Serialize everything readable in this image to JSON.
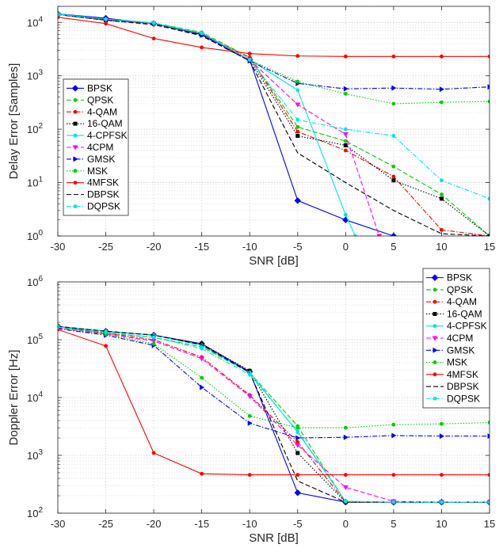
{
  "chart_data": [
    {
      "type": "line",
      "xlabel": "SNR [dB]",
      "ylabel": "Delay Error [Samples]",
      "yscale": "log",
      "xlim": [
        -30,
        15
      ],
      "ylim": [
        1,
        20000
      ],
      "x_ticks": [
        "-30",
        "-25",
        "-20",
        "-15",
        "-10",
        "-5",
        "0",
        "5",
        "10",
        "15"
      ],
      "y_ticks": [
        {
          "base": "10",
          "exp": "0"
        },
        {
          "base": "10",
          "exp": "1"
        },
        {
          "base": "10",
          "exp": "2"
        },
        {
          "base": "10",
          "exp": "3"
        },
        {
          "base": "10",
          "exp": "4"
        }
      ],
      "grid": "dotted",
      "legend_position": "left",
      "series": [
        {
          "name": "BPSK",
          "color": "#0000ff",
          "dash": "solid",
          "marker": "diamond",
          "x": [
            -30,
            -25,
            -20,
            -15,
            -10,
            -5,
            0,
            5
          ],
          "y": [
            14500,
            12000,
            9500,
            6000,
            2000,
            4.6,
            2,
            1
          ]
        },
        {
          "name": "QPSK",
          "color": "#00cc00",
          "dash": "dash",
          "marker": "dot",
          "x": [
            -30,
            -25,
            -20,
            -15,
            -10,
            -5,
            0,
            5,
            10,
            15
          ],
          "y": [
            14000,
            11500,
            9800,
            6500,
            2200,
            110,
            60,
            20,
            6,
            1
          ]
        },
        {
          "name": "4-QAM",
          "color": "#ff0000",
          "dash": "dashdot",
          "marker": "dot",
          "x": [
            -30,
            -25,
            -20,
            -15,
            -10,
            -5,
            0,
            5,
            10,
            15
          ],
          "y": [
            14000,
            11000,
            9500,
            6000,
            2200,
            90,
            40,
            13,
            1.3,
            1
          ]
        },
        {
          "name": "16-QAM",
          "color": "#000000",
          "dash": "dotted",
          "marker": "square",
          "x": [
            -30,
            -25,
            -20,
            -15,
            -10,
            -5,
            0,
            5,
            10,
            15
          ],
          "y": [
            14000,
            11000,
            9500,
            6000,
            2000,
            75,
            50,
            11,
            5,
            1
          ]
        },
        {
          "name": "4-CPFSK",
          "color": "#00e5e5",
          "dash": "solid",
          "marker": "dot",
          "x": [
            -30,
            -25,
            -20,
            -15,
            -10,
            -5,
            0,
            1
          ],
          "y": [
            14500,
            11500,
            9500,
            6300,
            2000,
            540,
            2.5,
            1
          ]
        },
        {
          "name": "4CPM",
          "color": "#ff00ff",
          "dash": "dash",
          "marker": "triangle-down",
          "x": [
            -30,
            -25,
            -20,
            -15,
            -10,
            -5,
            0,
            3.5
          ],
          "y": [
            14000,
            11000,
            9000,
            5800,
            2000,
            290,
            80,
            1
          ]
        },
        {
          "name": "GMSK",
          "color": "#0000ff",
          "dash": "dashdot",
          "marker": "triangle-right",
          "x": [
            -30,
            -25,
            -20,
            -15,
            -10,
            -5,
            0,
            5,
            10,
            15
          ],
          "y": [
            14000,
            11500,
            9500,
            5800,
            1900,
            720,
            570,
            590,
            560,
            620
          ]
        },
        {
          "name": "MSK",
          "color": "#00cc00",
          "dash": "dotted",
          "marker": "dot",
          "x": [
            -30,
            -25,
            -20,
            -15,
            -10,
            -5,
            0,
            5,
            10,
            15
          ],
          "y": [
            14000,
            11500,
            9500,
            6200,
            2000,
            780,
            460,
            300,
            320,
            330
          ]
        },
        {
          "name": "4MFSK",
          "color": "#ff0000",
          "dash": "solid",
          "marker": "dot",
          "x": [
            -30,
            -25,
            -20,
            -15,
            -10,
            -5,
            0,
            5,
            10,
            15
          ],
          "y": [
            12500,
            9500,
            5000,
            3400,
            2600,
            2350,
            2300,
            2300,
            2300,
            2300
          ]
        },
        {
          "name": "DBPSK",
          "color": "#000000",
          "dash": "dash",
          "marker": "none",
          "x": [
            -30,
            -25,
            -20,
            -15,
            -10,
            -5,
            0,
            5,
            10,
            15
          ],
          "y": [
            14000,
            11000,
            9200,
            5600,
            1900,
            36,
            10,
            3,
            1.1,
            1
          ]
        },
        {
          "name": "DQPSK",
          "color": "#00e5e5",
          "dash": "dashdot",
          "marker": "dot",
          "x": [
            -30,
            -25,
            -20,
            -15,
            -10,
            -5,
            0,
            5,
            10,
            15
          ],
          "y": [
            14000,
            11500,
            9800,
            6300,
            2000,
            150,
            100,
            75,
            11,
            5
          ]
        }
      ]
    },
    {
      "type": "line",
      "xlabel": "SNR [dB]",
      "ylabel": "Doppler Error [Hz]",
      "yscale": "log",
      "xlim": [
        -30,
        15
      ],
      "ylim": [
        100,
        1000000
      ],
      "x_ticks": [
        "-30",
        "-25",
        "-20",
        "-15",
        "-10",
        "-5",
        "0",
        "5",
        "10",
        "15"
      ],
      "y_ticks": [
        {
          "base": "10",
          "exp": "2"
        },
        {
          "base": "10",
          "exp": "3"
        },
        {
          "base": "10",
          "exp": "4"
        },
        {
          "base": "10",
          "exp": "5"
        },
        {
          "base": "10",
          "exp": "6"
        }
      ],
      "grid": "dotted",
      "legend_position": "top-right",
      "series": [
        {
          "name": "BPSK",
          "color": "#0000ff",
          "dash": "solid",
          "marker": "diamond",
          "x": [
            -30,
            -25,
            -20,
            -15,
            -10,
            -5,
            0,
            5,
            10,
            15
          ],
          "y": [
            170000,
            140000,
            120000,
            85000,
            28000,
            225,
            155,
            155,
            155,
            155
          ]
        },
        {
          "name": "QPSK",
          "color": "#00cc00",
          "dash": "dash",
          "marker": "dot",
          "x": [
            -30,
            -25,
            -20,
            -15,
            -10,
            -5,
            0,
            5,
            10,
            15
          ],
          "y": [
            170000,
            130000,
            110000,
            75000,
            27000,
            3200,
            155,
            155,
            155,
            155
          ]
        },
        {
          "name": "4-QAM",
          "color": "#ff0000",
          "dash": "dashdot",
          "marker": "dot",
          "x": [
            -30,
            -25,
            -20,
            -15,
            -10,
            -5,
            0,
            5,
            10,
            15
          ],
          "y": [
            165000,
            130000,
            100000,
            50000,
            11000,
            1700,
            155,
            155,
            155,
            155
          ]
        },
        {
          "name": "16-QAM",
          "color": "#000000",
          "dash": "dotted",
          "marker": "square",
          "x": [
            -30,
            -25,
            -20,
            -15,
            -10,
            -5,
            0,
            5,
            10,
            15
          ],
          "y": [
            170000,
            140000,
            120000,
            85000,
            29000,
            1100,
            155,
            155,
            155,
            155
          ]
        },
        {
          "name": "4-CPFSK",
          "color": "#00e5e5",
          "dash": "solid",
          "marker": "dot",
          "x": [
            -30,
            -25,
            -20,
            -15,
            -10,
            -5,
            0,
            5,
            10,
            15
          ],
          "y": [
            170000,
            140000,
            120000,
            80000,
            27000,
            2500,
            160,
            155,
            155,
            155
          ]
        },
        {
          "name": "4CPM",
          "color": "#ff00ff",
          "dash": "dash",
          "marker": "triangle-down",
          "x": [
            -30,
            -25,
            -20,
            -15,
            -10,
            -5,
            0,
            5,
            10,
            15
          ],
          "y": [
            160000,
            125000,
            95000,
            47000,
            10500,
            1500,
            280,
            160,
            155,
            155
          ]
        },
        {
          "name": "GMSK",
          "color": "#0000ff",
          "dash": "dashdot",
          "marker": "triangle-right",
          "x": [
            -30,
            -25,
            -20,
            -15,
            -10,
            -5,
            0,
            5,
            10,
            15
          ],
          "y": [
            155000,
            120000,
            80000,
            15000,
            3600,
            2000,
            2050,
            2200,
            2150,
            2150
          ]
        },
        {
          "name": "MSK",
          "color": "#00cc00",
          "dash": "dotted",
          "marker": "dot",
          "x": [
            -30,
            -25,
            -20,
            -15,
            -10,
            -5,
            0,
            5,
            10,
            15
          ],
          "y": [
            165000,
            125000,
            85000,
            22000,
            4800,
            3000,
            3000,
            3400,
            3500,
            3700
          ]
        },
        {
          "name": "4MFSK",
          "color": "#ff0000",
          "dash": "solid",
          "marker": "dot",
          "x": [
            -30,
            -25,
            -20,
            -15,
            -10,
            -5,
            0,
            5,
            10,
            15
          ],
          "y": [
            150000,
            78000,
            1100,
            480,
            460,
            460,
            460,
            460,
            460,
            460
          ]
        },
        {
          "name": "DBPSK",
          "color": "#000000",
          "dash": "dash",
          "marker": "none",
          "x": [
            -30,
            -25,
            -20,
            -15,
            -10,
            -5,
            0,
            5,
            10,
            15
          ],
          "y": [
            170000,
            140000,
            120000,
            82000,
            27000,
            360,
            155,
            155,
            155,
            155
          ]
        },
        {
          "name": "DQPSK",
          "color": "#00e5e5",
          "dash": "dashdot",
          "marker": "dot",
          "x": [
            -30,
            -25,
            -20,
            -15,
            -10,
            -5,
            0,
            5,
            10,
            15
          ],
          "y": [
            165000,
            135000,
            110000,
            70000,
            25000,
            2600,
            160,
            155,
            155,
            155
          ]
        }
      ]
    }
  ]
}
